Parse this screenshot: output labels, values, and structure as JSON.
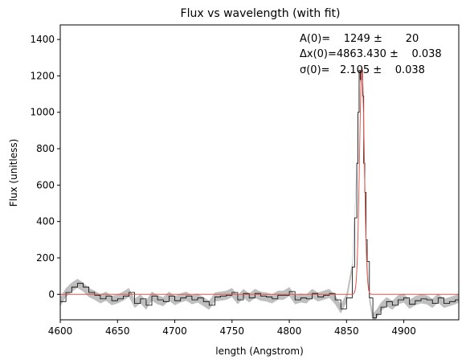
{
  "chart_data": {
    "type": "line",
    "title": "Flux vs wavelength (with fit)",
    "xlabel": "length (Angstrom)",
    "ylabel": "Flux (unitless)",
    "xlim": [
      4600,
      4948
    ],
    "ylim": [
      -140,
      1480
    ],
    "xticks": [
      4600,
      4650,
      4700,
      4750,
      4800,
      4850,
      4900
    ],
    "yticks": [
      0,
      200,
      400,
      600,
      800,
      1000,
      1200,
      1400
    ],
    "grid": false,
    "legend": "none",
    "colors": {
      "data": "#000000",
      "error_band": "#bfbfbf",
      "fit": "#e8534a"
    },
    "annotation": [
      "A(0)=    1249 ±       20",
      "Δx(0)=4863.430 ±    0.038",
      "σ(0)=   2.105 ±    0.038"
    ],
    "fit": {
      "model": "gaussian",
      "amplitude": 1249,
      "center": 4863.43,
      "sigma": 2.105
    },
    "series": [
      {
        "x": [
          4600,
          4605,
          4610,
          4615,
          4620,
          4625,
          4630,
          4635,
          4640,
          4645,
          4650,
          4655,
          4660,
          4665,
          4670,
          4675,
          4680,
          4685,
          4690,
          4695,
          4700,
          4705,
          4710,
          4715,
          4720,
          4725,
          4730,
          4735,
          4740,
          4745,
          4750,
          4755,
          4760,
          4765,
          4770,
          4775,
          4780,
          4785,
          4790,
          4795,
          4800,
          4805,
          4810,
          4815,
          4820,
          4825,
          4830,
          4835,
          4840,
          4845,
          4850,
          4855,
          4857,
          4859,
          4860,
          4861,
          4862,
          4863,
          4864,
          4865,
          4866,
          4867,
          4868,
          4870,
          4873,
          4876,
          4880,
          4885,
          4890,
          4895,
          4900,
          4905,
          4910,
          4915,
          4920,
          4925,
          4930,
          4935,
          4940,
          4945,
          4948
        ],
        "y": [
          -40,
          10,
          40,
          60,
          40,
          10,
          -5,
          -25,
          -10,
          -35,
          -25,
          -10,
          10,
          -50,
          -25,
          -60,
          -10,
          -30,
          -40,
          -10,
          -35,
          -20,
          -10,
          -30,
          -20,
          -40,
          -60,
          -15,
          -10,
          -5,
          10,
          -30,
          5,
          -20,
          5,
          -10,
          -15,
          -25,
          -5,
          -5,
          15,
          -30,
          -20,
          -25,
          5,
          -15,
          -5,
          5,
          -30,
          -80,
          -20,
          150,
          420,
          720,
          1000,
          1230,
          1180,
          1230,
          1090,
          720,
          560,
          300,
          180,
          -20,
          -130,
          -110,
          -70,
          -40,
          -60,
          -30,
          -20,
          -55,
          -35,
          -25,
          -30,
          -50,
          -20,
          -50,
          -40,
          -30,
          -20
        ]
      }
    ]
  }
}
